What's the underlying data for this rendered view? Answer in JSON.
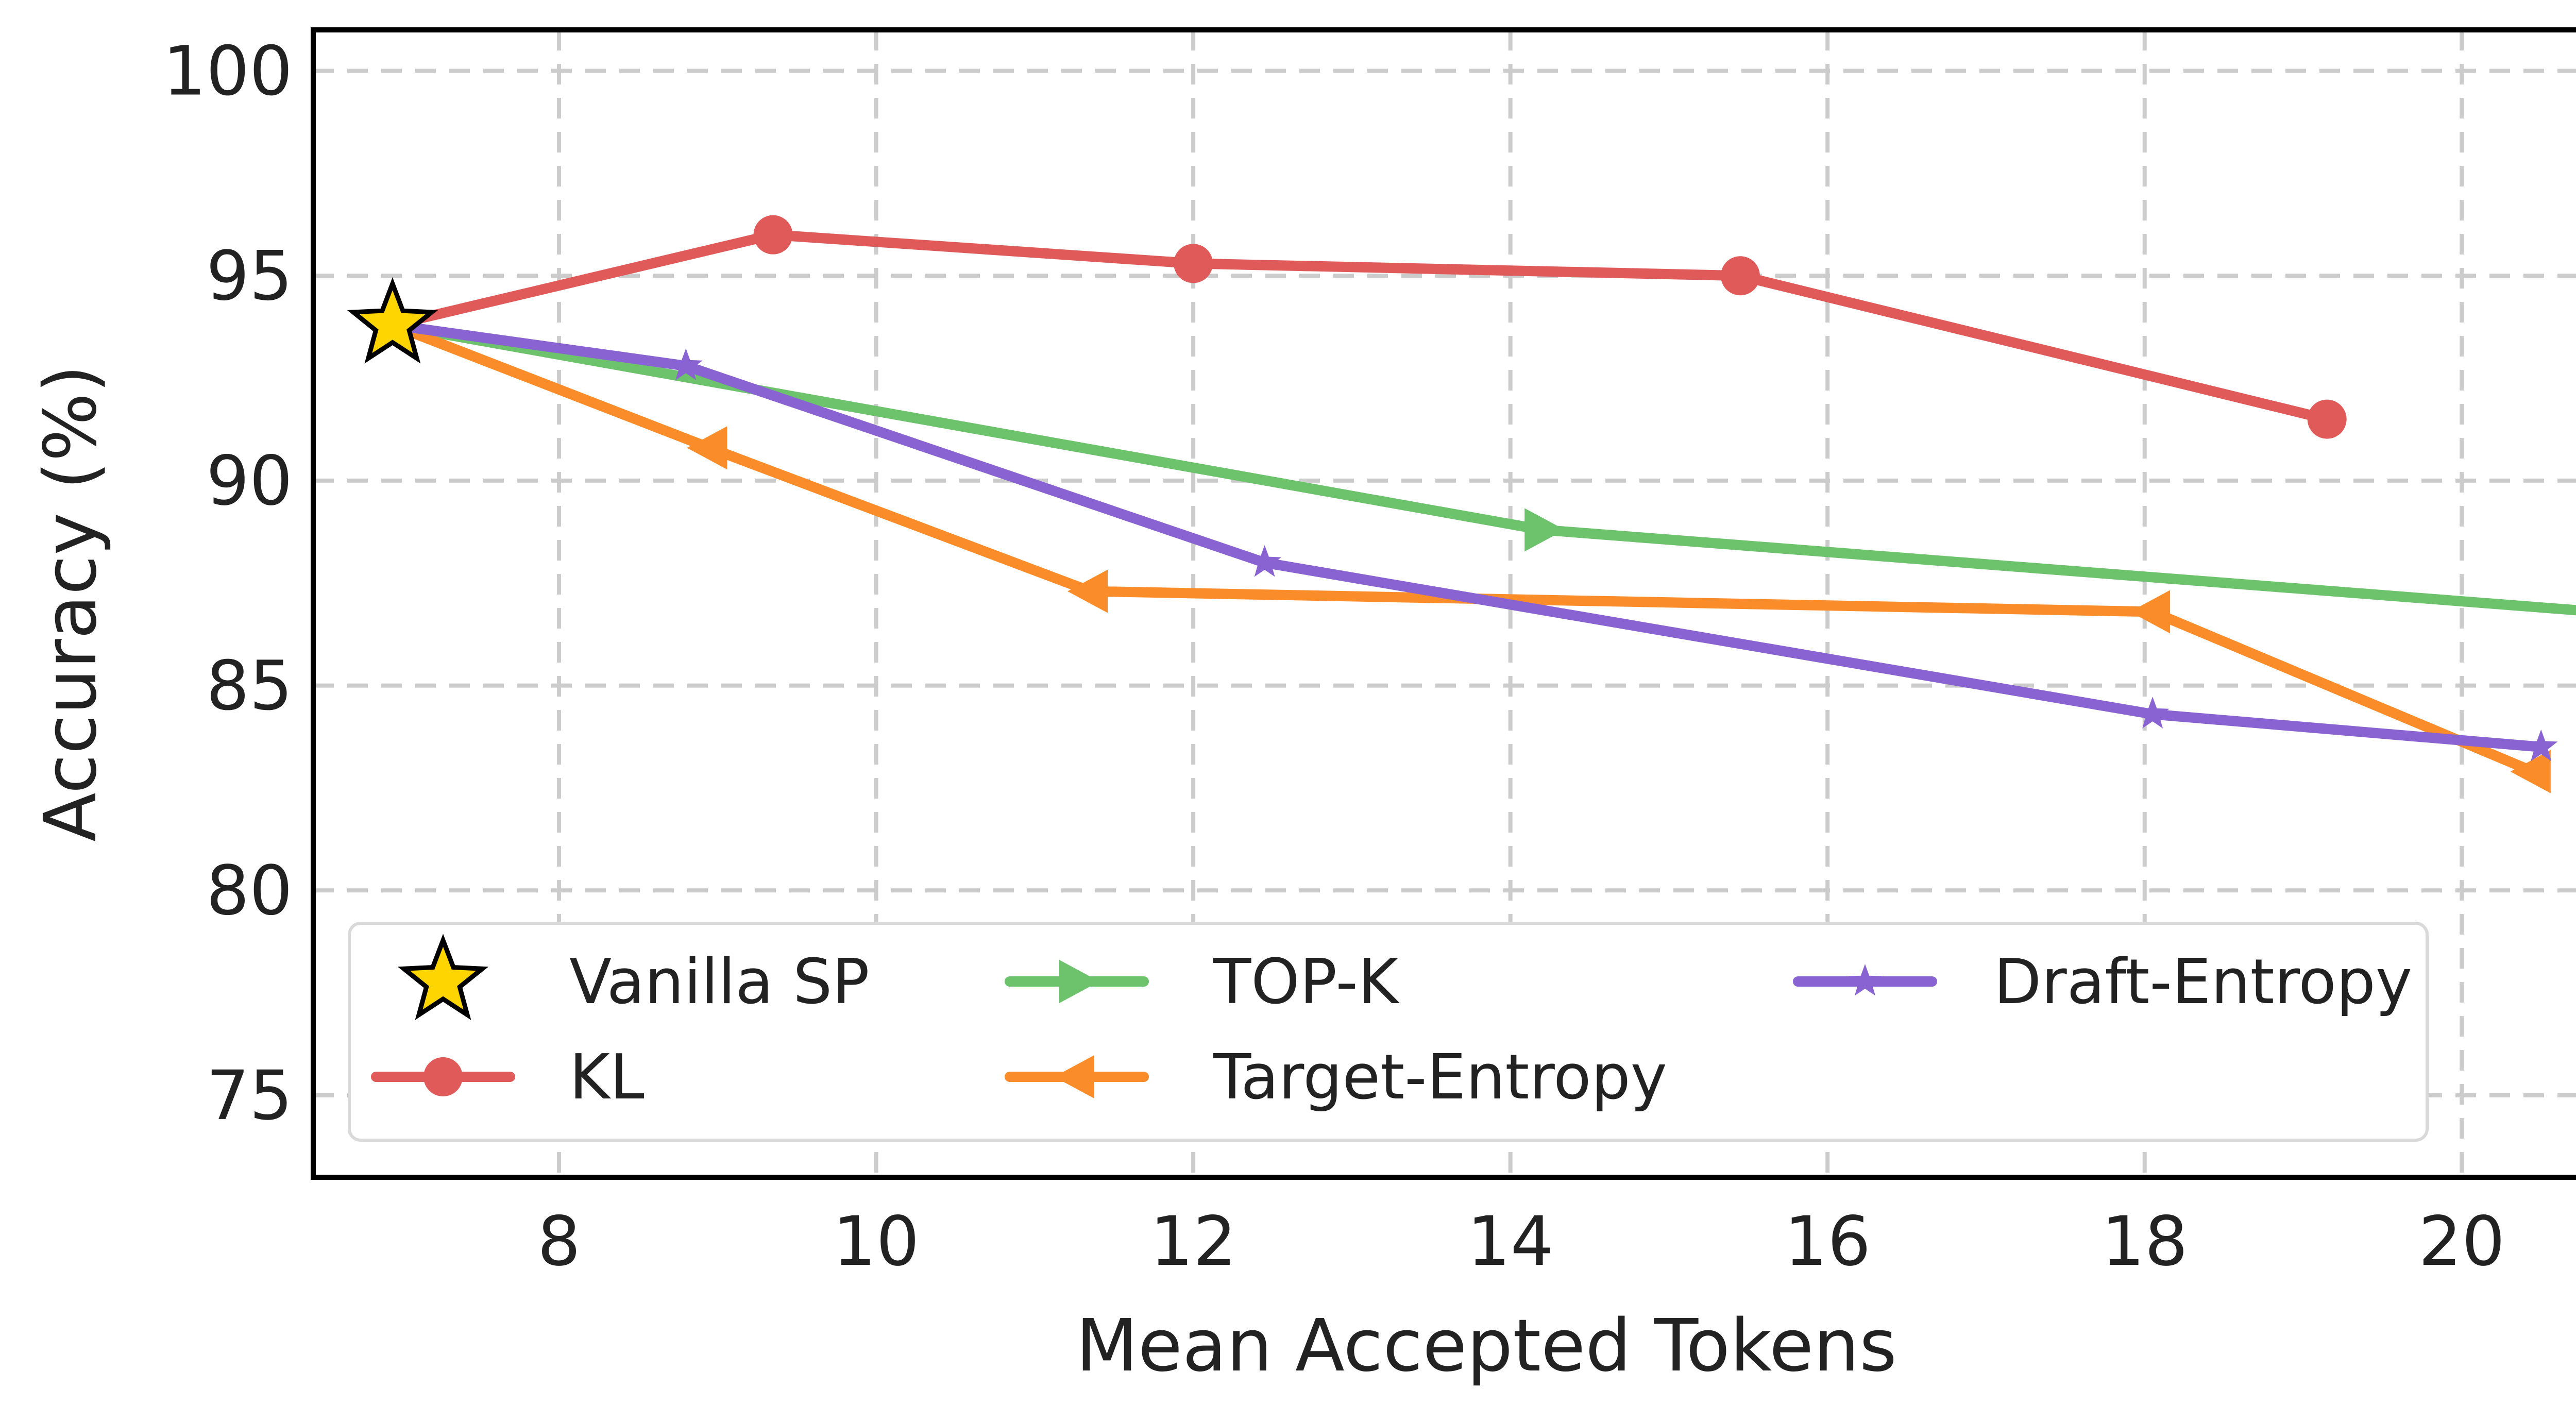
{
  "chart_data": {
    "type": "line",
    "title": "",
    "xlabel": "Mean Accepted Tokens",
    "ylabel": "Accuracy (%)",
    "xlim": [
      6.45,
      21.25
    ],
    "ylim": [
      73,
      101
    ],
    "xticks": [
      8,
      10,
      12,
      14,
      16,
      18,
      20
    ],
    "yticks": [
      75,
      80,
      85,
      90,
      95,
      100
    ],
    "grid": true,
    "legend_position": "lower-left",
    "legend_columns": 3,
    "series": [
      {
        "name": "Vanilla SP",
        "marker": "star-large",
        "color": "#FFD500",
        "edge_color": "#000000",
        "points": [
          {
            "x": 6.95,
            "y": 93.8
          }
        ]
      },
      {
        "name": "KL",
        "marker": "circle",
        "color": "#E05A5A",
        "points": [
          {
            "x": 6.95,
            "y": 93.8
          },
          {
            "x": 9.35,
            "y": 96.0
          },
          {
            "x": 12.0,
            "y": 95.3
          },
          {
            "x": 15.45,
            "y": 95.0
          },
          {
            "x": 19.15,
            "y": 91.5
          }
        ]
      },
      {
        "name": "TOP-K",
        "marker": "triangle-right",
        "color": "#6CC36C",
        "points": [
          {
            "x": 6.95,
            "y": 93.8
          },
          {
            "x": 14.2,
            "y": 88.8
          },
          {
            "x": 20.85,
            "y": 86.8
          }
        ]
      },
      {
        "name": "Target-Entropy",
        "marker": "triangle-left",
        "color": "#FA8C2A",
        "points": [
          {
            "x": 6.95,
            "y": 93.8
          },
          {
            "x": 8.95,
            "y": 90.8
          },
          {
            "x": 11.35,
            "y": 87.3
          },
          {
            "x": 18.05,
            "y": 86.8
          },
          {
            "x": 20.45,
            "y": 82.9
          }
        ]
      },
      {
        "name": "Draft-Entropy",
        "marker": "star-small",
        "color": "#8A63D2",
        "points": [
          {
            "x": 6.95,
            "y": 93.8
          },
          {
            "x": 8.8,
            "y": 92.8
          },
          {
            "x": 12.45,
            "y": 88.0
          },
          {
            "x": 18.05,
            "y": 84.3
          },
          {
            "x": 20.5,
            "y": 83.5
          }
        ]
      }
    ]
  }
}
